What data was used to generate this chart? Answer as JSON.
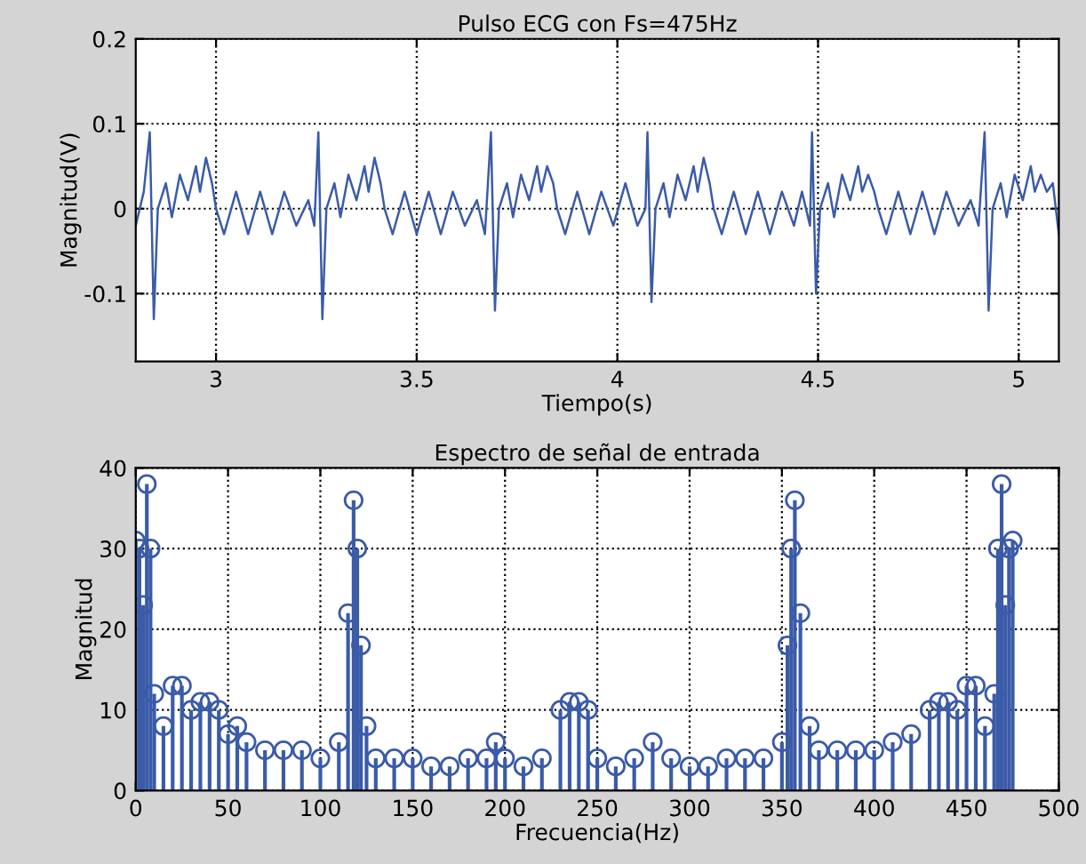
{
  "chart_data": [
    {
      "type": "line",
      "title": "Pulso ECG con Fs=475Hz",
      "xlabel": "Tiempo(s)",
      "ylabel": "Magnitud(V)",
      "xlim": [
        2.8,
        5.1
      ],
      "ylim": [
        -0.18,
        0.2
      ],
      "xticks": [
        3,
        3.5,
        4,
        4.5,
        5
      ],
      "yticks": [
        -0.1,
        0,
        0.1,
        0.2
      ],
      "grid": true,
      "line_style": "solid",
      "marker": "none",
      "series": [
        {
          "color": "#3a5ba8",
          "x": [
            2.8,
            2.82,
            2.835,
            2.845,
            2.855,
            2.875,
            2.89,
            2.91,
            2.93,
            2.95,
            2.96,
            2.975,
            2.99,
            3.0,
            3.02,
            3.05,
            3.08,
            3.11,
            3.14,
            3.17,
            3.2,
            3.23,
            3.245,
            3.255,
            3.265,
            3.275,
            3.295,
            3.31,
            3.33,
            3.35,
            3.37,
            3.38,
            3.395,
            3.41,
            3.42,
            3.44,
            3.47,
            3.5,
            3.53,
            3.56,
            3.59,
            3.62,
            3.65,
            3.67,
            3.685,
            3.695,
            3.705,
            3.725,
            3.74,
            3.76,
            3.78,
            3.8,
            3.81,
            3.825,
            3.84,
            3.85,
            3.87,
            3.9,
            3.93,
            3.96,
            3.99,
            4.02,
            4.05,
            4.07,
            4.075,
            4.085,
            4.095,
            4.115,
            4.13,
            4.15,
            4.17,
            4.19,
            4.2,
            4.215,
            4.23,
            4.24,
            4.26,
            4.29,
            4.32,
            4.35,
            4.38,
            4.41,
            4.44,
            4.46,
            4.48,
            4.485,
            4.495,
            4.505,
            4.525,
            4.54,
            4.56,
            4.58,
            4.6,
            4.61,
            4.625,
            4.64,
            4.65,
            4.67,
            4.7,
            4.73,
            4.76,
            4.79,
            4.82,
            4.85,
            4.88,
            4.9,
            4.915,
            4.925,
            4.935,
            4.955,
            4.97,
            4.99,
            5.01,
            5.03,
            5.04,
            5.055,
            5.07,
            5.085,
            5.1
          ],
          "values": [
            -0.02,
            0.02,
            0.09,
            -0.13,
            0.0,
            0.03,
            -0.01,
            0.04,
            0.01,
            0.05,
            0.02,
            0.06,
            0.03,
            0.0,
            -0.03,
            0.02,
            -0.03,
            0.02,
            -0.03,
            0.02,
            -0.02,
            0.01,
            -0.02,
            0.09,
            -0.13,
            0.0,
            0.03,
            -0.01,
            0.04,
            0.01,
            0.05,
            0.02,
            0.06,
            0.03,
            0.0,
            -0.03,
            0.02,
            -0.03,
            0.02,
            -0.03,
            0.02,
            -0.02,
            0.01,
            -0.03,
            0.09,
            -0.12,
            0.0,
            0.03,
            -0.01,
            0.04,
            0.01,
            0.05,
            0.02,
            0.05,
            0.03,
            0.0,
            -0.03,
            0.02,
            -0.03,
            0.02,
            -0.02,
            0.03,
            -0.02,
            0.0,
            0.09,
            -0.11,
            0.0,
            0.03,
            -0.01,
            0.04,
            0.01,
            0.05,
            0.02,
            0.06,
            0.03,
            0.0,
            -0.03,
            0.02,
            -0.03,
            0.02,
            -0.03,
            0.02,
            -0.02,
            0.02,
            -0.02,
            0.09,
            -0.1,
            0.0,
            0.03,
            -0.01,
            0.04,
            0.01,
            0.05,
            0.02,
            0.04,
            0.02,
            0.0,
            -0.03,
            0.02,
            -0.03,
            0.02,
            -0.03,
            0.02,
            -0.02,
            0.01,
            -0.02,
            0.09,
            -0.12,
            0.0,
            0.03,
            -0.01,
            0.04,
            0.01,
            0.05,
            0.02,
            0.04,
            0.02,
            0.03,
            -0.03
          ]
        }
      ]
    },
    {
      "type": "lollipop",
      "title": "Espectro de señal de entrada",
      "xlabel": "Frecuencia(Hz)",
      "ylabel": "Magnitud",
      "xlim": [
        0,
        500
      ],
      "ylim": [
        0,
        40
      ],
      "xticks": [
        0,
        50,
        100,
        150,
        200,
        250,
        300,
        350,
        400,
        450,
        500
      ],
      "yticks": [
        0,
        10,
        20,
        30,
        40
      ],
      "grid": true,
      "marker": "circle",
      "series": [
        {
          "color": "#3a5ba8",
          "x": [
            0,
            2,
            4,
            6,
            8,
            10,
            15,
            20,
            25,
            30,
            35,
            40,
            45,
            50,
            55,
            60,
            70,
            80,
            90,
            100,
            110,
            115,
            118,
            120,
            122,
            125,
            130,
            140,
            150,
            160,
            170,
            180,
            190,
            195,
            200,
            210,
            220,
            230,
            235,
            240,
            245,
            250,
            260,
            270,
            280,
            290,
            300,
            310,
            320,
            330,
            340,
            350,
            353,
            355,
            357,
            360,
            365,
            370,
            380,
            390,
            400,
            410,
            420,
            430,
            435,
            440,
            445,
            450,
            455,
            460,
            465,
            467,
            469,
            471,
            473,
            475
          ],
          "values": [
            31,
            30,
            23,
            38,
            30,
            12,
            8,
            13,
            13,
            10,
            11,
            11,
            10,
            7,
            8,
            6,
            5,
            5,
            5,
            4,
            6,
            22,
            36,
            30,
            18,
            8,
            4,
            4,
            4,
            3,
            3,
            4,
            4,
            6,
            4,
            3,
            4,
            10,
            11,
            11,
            10,
            4,
            3,
            4,
            6,
            4,
            3,
            3,
            4,
            4,
            4,
            6,
            18,
            30,
            36,
            22,
            8,
            5,
            5,
            5,
            5,
            6,
            7,
            10,
            11,
            11,
            10,
            13,
            13,
            8,
            12,
            30,
            38,
            23,
            30,
            31
          ]
        }
      ]
    }
  ]
}
